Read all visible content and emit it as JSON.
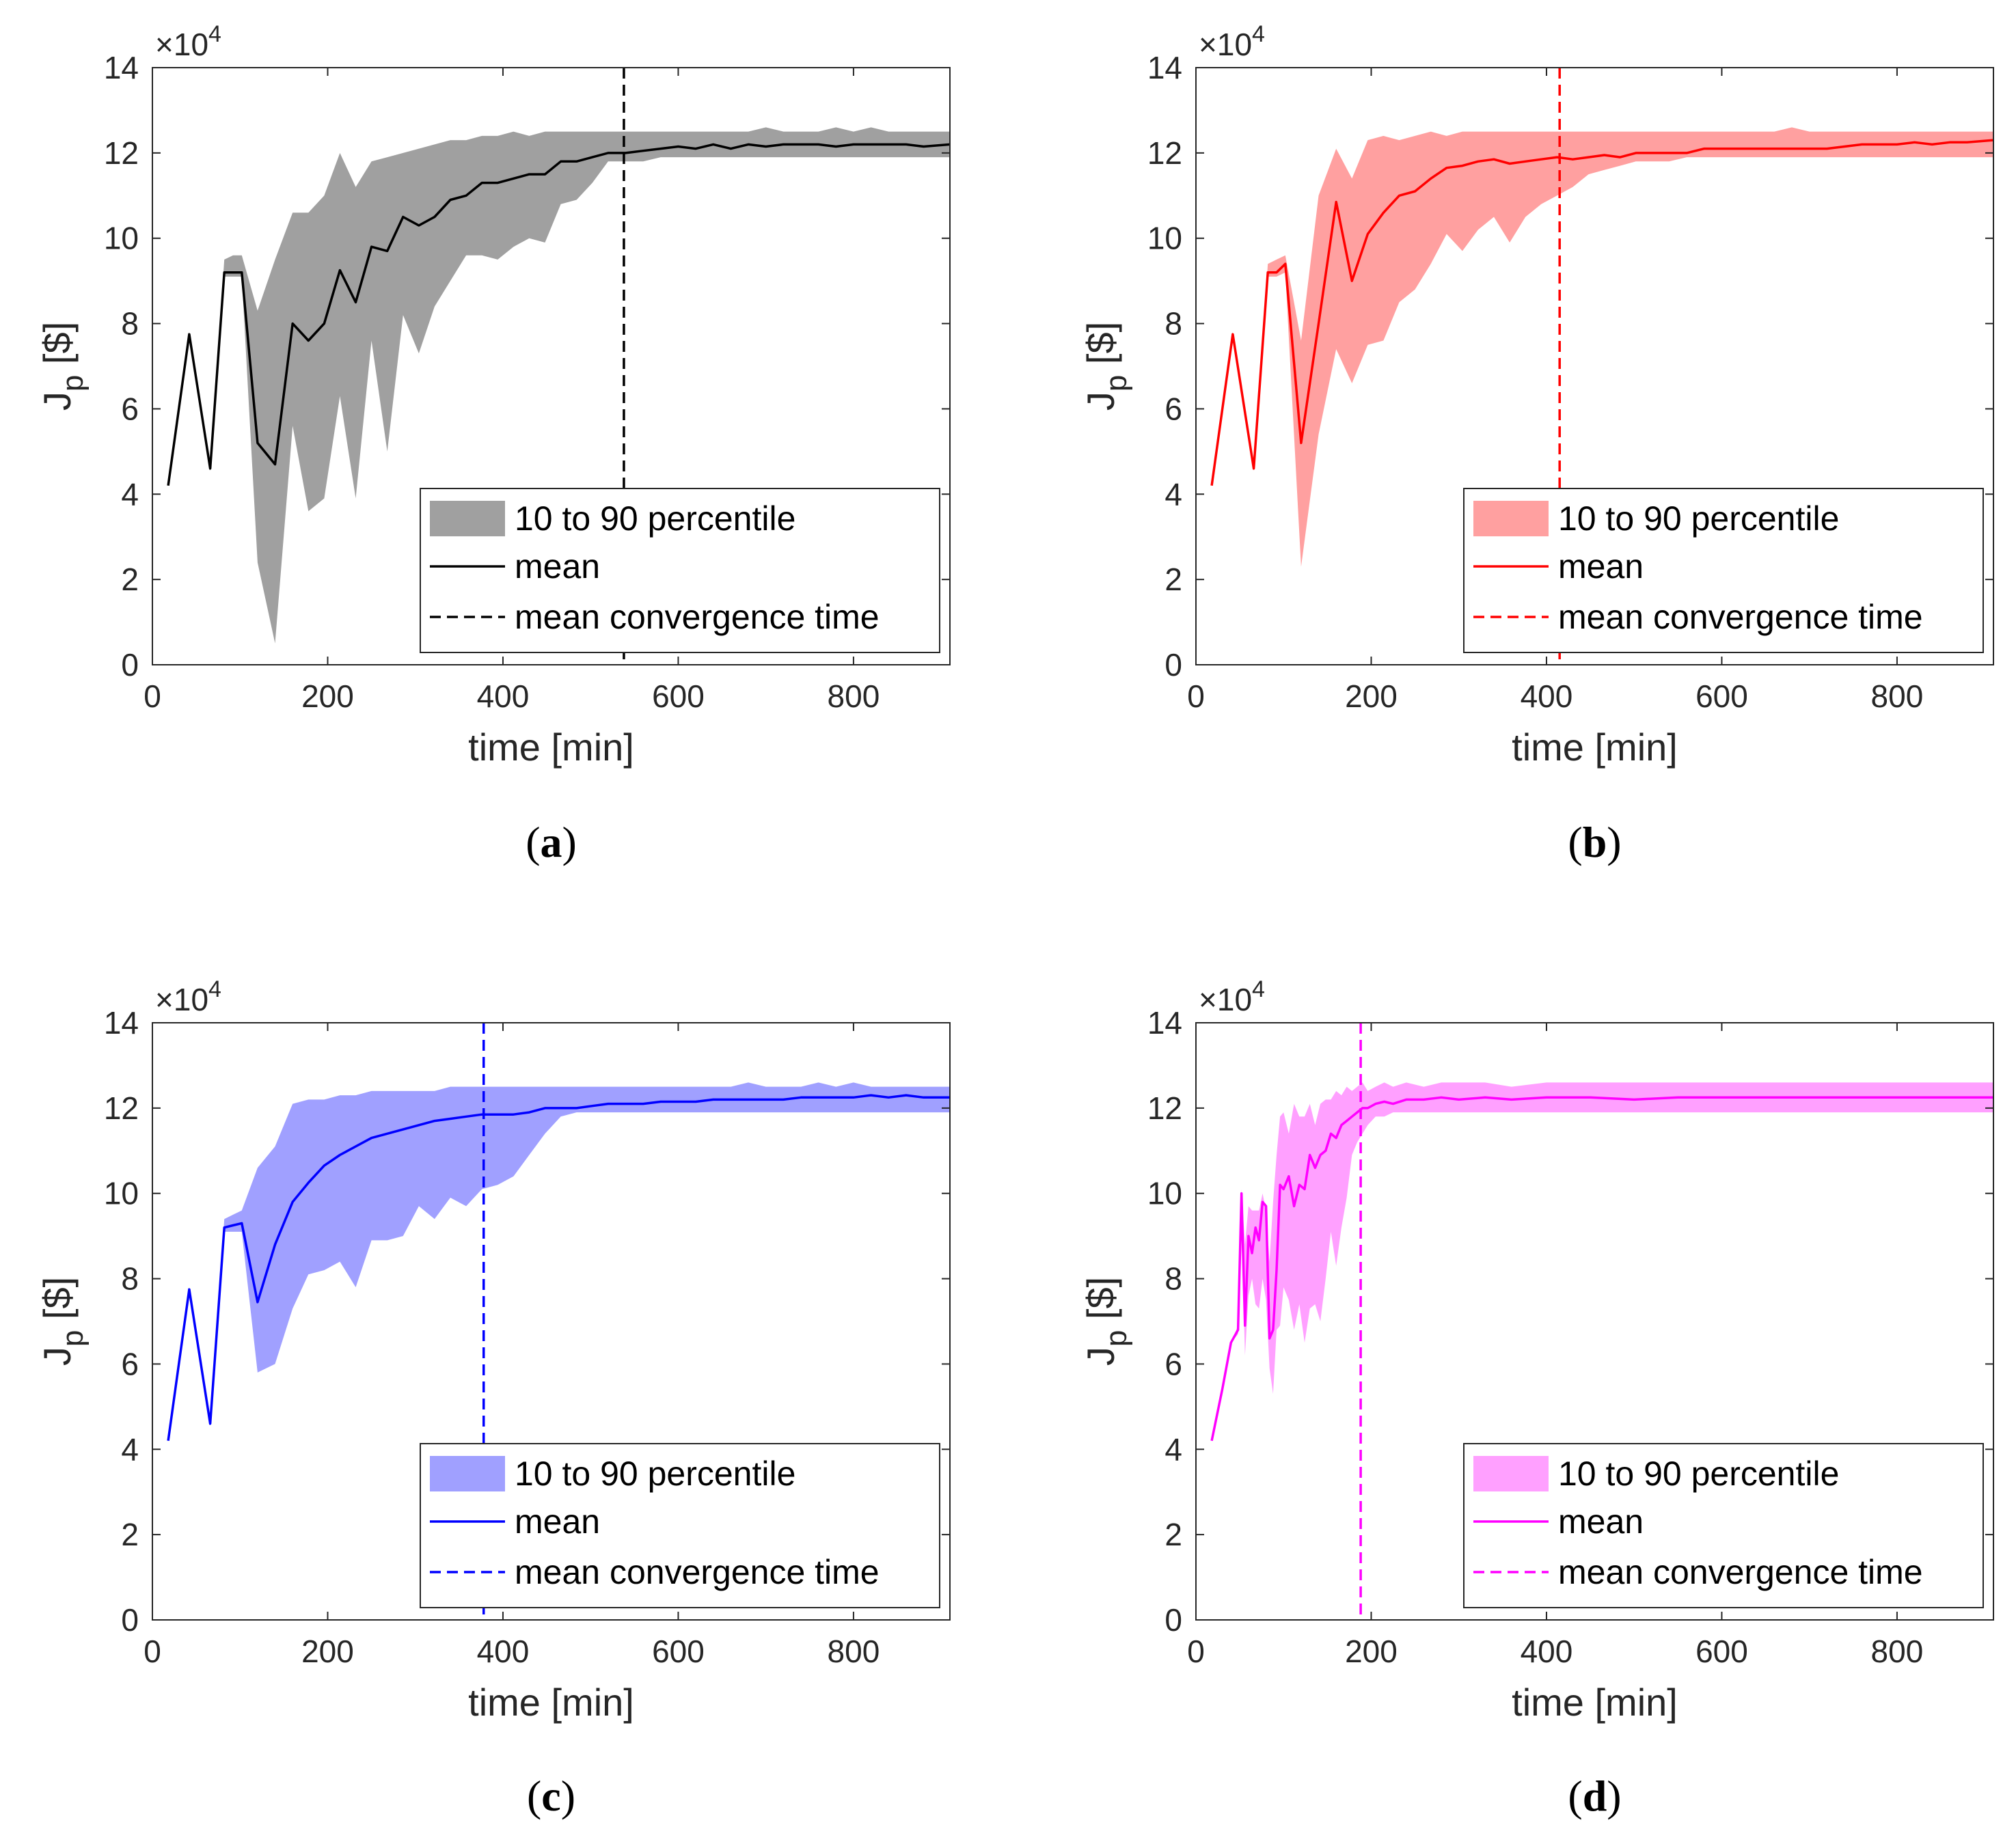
{
  "colors": {
    "axis": "#262626",
    "a": {
      "line": "#000000",
      "band": "#a0a0a0"
    },
    "b": {
      "line": "#ff0000",
      "band": "#ffa0a0"
    },
    "c": {
      "line": "#0000ff",
      "band": "#a0a0ff"
    },
    "d": {
      "line": "#ff00ff",
      "band": "#ffa0ff"
    }
  },
  "chart_data": [
    {
      "id": "a",
      "caption": {
        "open": "(",
        "letter": "a",
        "close": ")"
      },
      "type": "line",
      "xlabel": "time [min]",
      "ylabel": "J",
      "ylabel_sub": "p",
      "ylabel_unit": " [$]",
      "exponent": {
        "base": "×10",
        "power": "4"
      },
      "xlim": [
        0,
        910
      ],
      "ylim": [
        0,
        14
      ],
      "xticks": [
        "0",
        "200",
        "400",
        "600",
        "800"
      ],
      "yticks": [
        "0",
        "2",
        "4",
        "6",
        "8",
        "10",
        "12",
        "14"
      ],
      "legend": {
        "band": "10 to 90 percentile",
        "mean": "mean",
        "convergence": "mean convergence time"
      },
      "convergence_time": 538,
      "mean": {
        "x": [
          18,
          42,
          66,
          82,
          92,
          102,
          120,
          140,
          160,
          178,
          196,
          214,
          232,
          250,
          268,
          286,
          304,
          322,
          340,
          358,
          376,
          394,
          412,
          430,
          448,
          466,
          484,
          502,
          520,
          540,
          560,
          580,
          600,
          620,
          640,
          660,
          680,
          700,
          720,
          740,
          760,
          780,
          800,
          820,
          840,
          860,
          880,
          910
        ],
        "y": [
          4.2,
          7.75,
          4.6,
          9.2,
          9.2,
          9.2,
          5.2,
          4.7,
          8.0,
          7.6,
          8.0,
          9.25,
          8.5,
          9.8,
          9.7,
          10.5,
          10.3,
          10.5,
          10.9,
          11.0,
          11.3,
          11.3,
          11.4,
          11.5,
          11.5,
          11.8,
          11.8,
          11.9,
          12.0,
          12.0,
          12.05,
          12.1,
          12.15,
          12.1,
          12.2,
          12.1,
          12.2,
          12.15,
          12.2,
          12.2,
          12.2,
          12.15,
          12.2,
          12.2,
          12.2,
          12.2,
          12.15,
          12.2
        ]
      },
      "band": {
        "x": [
          18,
          42,
          66,
          82,
          92,
          102,
          120,
          140,
          160,
          178,
          196,
          214,
          232,
          250,
          268,
          286,
          304,
          322,
          340,
          358,
          376,
          394,
          412,
          430,
          448,
          466,
          484,
          502,
          520,
          540,
          560,
          580,
          600,
          620,
          640,
          660,
          680,
          700,
          720,
          740,
          760,
          780,
          800,
          820,
          840,
          860,
          880,
          910
        ],
        "upper": [
          4.2,
          7.75,
          4.6,
          9.5,
          9.6,
          9.6,
          8.3,
          9.5,
          10.6,
          10.6,
          11.0,
          12.0,
          11.2,
          11.8,
          11.9,
          12.0,
          12.1,
          12.2,
          12.3,
          12.3,
          12.4,
          12.4,
          12.5,
          12.4,
          12.5,
          12.5,
          12.5,
          12.5,
          12.5,
          12.5,
          12.5,
          12.5,
          12.5,
          12.5,
          12.5,
          12.5,
          12.5,
          12.6,
          12.5,
          12.5,
          12.5,
          12.6,
          12.5,
          12.6,
          12.5,
          12.5,
          12.5,
          12.5
        ],
        "lower": [
          4.2,
          7.75,
          4.6,
          9.1,
          9.1,
          9.1,
          2.4,
          0.5,
          5.6,
          3.6,
          3.9,
          6.3,
          3.9,
          7.6,
          5.0,
          8.2,
          7.3,
          8.4,
          9.0,
          9.6,
          9.6,
          9.5,
          9.8,
          10.0,
          9.9,
          10.8,
          10.9,
          11.3,
          11.8,
          11.8,
          11.8,
          11.9,
          11.9,
          11.9,
          11.9,
          11.9,
          11.9,
          11.9,
          11.9,
          11.9,
          11.9,
          11.9,
          11.9,
          11.9,
          11.9,
          11.9,
          11.9,
          11.9
        ]
      }
    },
    {
      "id": "b",
      "caption": {
        "open": "(",
        "letter": "b",
        "close": ")"
      },
      "type": "line",
      "xlabel": "time [min]",
      "ylabel": "J",
      "ylabel_sub": "p",
      "ylabel_unit": " [$]",
      "exponent": {
        "base": "×10",
        "power": "4"
      },
      "xlim": [
        0,
        910
      ],
      "ylim": [
        0,
        14
      ],
      "xticks": [
        "0",
        "200",
        "400",
        "600",
        "800"
      ],
      "yticks": [
        "0",
        "2",
        "4",
        "6",
        "8",
        "10",
        "12",
        "14"
      ],
      "legend": {
        "band": "10 to 90 percentile",
        "mean": "mean",
        "convergence": "mean convergence time"
      },
      "convergence_time": 415,
      "mean": {
        "x": [
          18,
          42,
          66,
          82,
          92,
          102,
          120,
          140,
          160,
          178,
          196,
          214,
          232,
          250,
          268,
          286,
          304,
          322,
          340,
          358,
          376,
          394,
          412,
          430,
          448,
          466,
          484,
          502,
          520,
          540,
          560,
          580,
          600,
          620,
          640,
          660,
          680,
          700,
          720,
          740,
          760,
          780,
          800,
          820,
          840,
          860,
          880,
          910
        ],
        "y": [
          4.2,
          7.75,
          4.6,
          9.2,
          9.2,
          9.4,
          5.2,
          8.0,
          10.85,
          9.0,
          10.1,
          10.6,
          11.0,
          11.1,
          11.4,
          11.65,
          11.7,
          11.8,
          11.85,
          11.75,
          11.8,
          11.85,
          11.9,
          11.85,
          11.9,
          11.95,
          11.9,
          12.0,
          12.0,
          12.0,
          12.0,
          12.1,
          12.1,
          12.1,
          12.1,
          12.1,
          12.1,
          12.1,
          12.1,
          12.15,
          12.2,
          12.2,
          12.2,
          12.25,
          12.2,
          12.25,
          12.25,
          12.3
        ]
      },
      "band": {
        "x": [
          18,
          42,
          66,
          82,
          92,
          102,
          120,
          140,
          160,
          178,
          196,
          214,
          232,
          250,
          268,
          286,
          304,
          322,
          340,
          358,
          376,
          394,
          412,
          430,
          448,
          466,
          484,
          502,
          520,
          540,
          560,
          580,
          600,
          620,
          640,
          660,
          680,
          700,
          720,
          740,
          760,
          780,
          800,
          820,
          840,
          860,
          880,
          910
        ],
        "upper": [
          4.2,
          7.75,
          4.6,
          9.4,
          9.5,
          9.6,
          7.6,
          11.0,
          12.1,
          11.4,
          12.3,
          12.4,
          12.3,
          12.4,
          12.5,
          12.4,
          12.5,
          12.5,
          12.5,
          12.5,
          12.5,
          12.5,
          12.5,
          12.5,
          12.5,
          12.5,
          12.5,
          12.5,
          12.5,
          12.5,
          12.5,
          12.5,
          12.5,
          12.5,
          12.5,
          12.5,
          12.6,
          12.5,
          12.5,
          12.5,
          12.5,
          12.5,
          12.5,
          12.5,
          12.5,
          12.5,
          12.5,
          12.5
        ],
        "lower": [
          4.2,
          7.75,
          4.6,
          9.1,
          9.1,
          9.2,
          2.3,
          5.4,
          7.4,
          6.6,
          7.5,
          7.6,
          8.5,
          8.8,
          9.4,
          10.1,
          9.7,
          10.2,
          10.5,
          9.9,
          10.5,
          10.8,
          11.0,
          11.2,
          11.5,
          11.6,
          11.7,
          11.8,
          11.8,
          11.8,
          11.9,
          11.9,
          11.9,
          11.9,
          11.9,
          11.9,
          11.9,
          11.9,
          11.9,
          11.9,
          11.9,
          11.9,
          11.9,
          11.9,
          11.9,
          11.9,
          11.9,
          11.9
        ]
      }
    },
    {
      "id": "c",
      "caption": {
        "open": "(",
        "letter": "c",
        "close": ")"
      },
      "type": "line",
      "xlabel": "time [min]",
      "ylabel": "J",
      "ylabel_sub": "p",
      "ylabel_unit": " [$]",
      "exponent": {
        "base": "×10",
        "power": "4"
      },
      "xlim": [
        0,
        910
      ],
      "ylim": [
        0,
        14
      ],
      "xticks": [
        "0",
        "200",
        "400",
        "600",
        "800"
      ],
      "yticks": [
        "0",
        "2",
        "4",
        "6",
        "8",
        "10",
        "12",
        "14"
      ],
      "legend": {
        "band": "10 to 90 percentile",
        "mean": "mean",
        "convergence": "mean convergence time"
      },
      "convergence_time": 378,
      "mean": {
        "x": [
          18,
          42,
          66,
          82,
          92,
          102,
          120,
          140,
          160,
          178,
          196,
          214,
          232,
          250,
          268,
          286,
          304,
          322,
          340,
          358,
          376,
          394,
          412,
          430,
          448,
          466,
          484,
          502,
          520,
          540,
          560,
          580,
          600,
          620,
          640,
          660,
          680,
          700,
          720,
          740,
          760,
          780,
          800,
          820,
          840,
          860,
          880,
          910
        ],
        "y": [
          4.2,
          7.75,
          4.6,
          9.2,
          9.25,
          9.3,
          7.45,
          8.8,
          9.8,
          10.25,
          10.65,
          10.9,
          11.1,
          11.3,
          11.4,
          11.5,
          11.6,
          11.7,
          11.75,
          11.8,
          11.85,
          11.85,
          11.85,
          11.9,
          12.0,
          12.0,
          12.0,
          12.05,
          12.1,
          12.1,
          12.1,
          12.15,
          12.15,
          12.15,
          12.2,
          12.2,
          12.2,
          12.2,
          12.2,
          12.25,
          12.25,
          12.25,
          12.25,
          12.3,
          12.25,
          12.3,
          12.25,
          12.25
        ]
      },
      "band": {
        "x": [
          18,
          42,
          66,
          82,
          92,
          102,
          120,
          140,
          160,
          178,
          196,
          214,
          232,
          250,
          268,
          286,
          304,
          322,
          340,
          358,
          376,
          394,
          412,
          430,
          448,
          466,
          484,
          502,
          520,
          540,
          560,
          580,
          600,
          620,
          640,
          660,
          680,
          700,
          720,
          740,
          760,
          780,
          800,
          820,
          840,
          860,
          880,
          910
        ],
        "upper": [
          4.2,
          7.75,
          4.6,
          9.4,
          9.5,
          9.6,
          10.6,
          11.1,
          12.1,
          12.2,
          12.2,
          12.3,
          12.3,
          12.4,
          12.4,
          12.4,
          12.4,
          12.4,
          12.5,
          12.5,
          12.5,
          12.5,
          12.5,
          12.5,
          12.5,
          12.5,
          12.5,
          12.5,
          12.5,
          12.5,
          12.5,
          12.5,
          12.5,
          12.5,
          12.5,
          12.5,
          12.6,
          12.5,
          12.5,
          12.5,
          12.6,
          12.5,
          12.6,
          12.5,
          12.5,
          12.5,
          12.5,
          12.5
        ],
        "lower": [
          4.2,
          7.75,
          4.6,
          9.1,
          9.1,
          9.1,
          5.8,
          6.0,
          7.3,
          8.1,
          8.2,
          8.4,
          7.8,
          8.9,
          8.9,
          9.0,
          9.7,
          9.4,
          9.9,
          9.7,
          10.1,
          10.2,
          10.4,
          10.9,
          11.4,
          11.8,
          11.9,
          11.9,
          11.9,
          11.9,
          11.9,
          11.9,
          11.9,
          11.9,
          11.9,
          11.9,
          11.9,
          11.9,
          11.9,
          11.9,
          11.9,
          11.9,
          11.9,
          11.9,
          11.9,
          11.9,
          11.9,
          11.9
        ]
      }
    },
    {
      "id": "d",
      "caption": {
        "open": "(",
        "letter": "d",
        "close": ")"
      },
      "type": "line",
      "xlabel": "time [min]",
      "ylabel": "J",
      "ylabel_sub": "p",
      "ylabel_unit": " [$]",
      "exponent": {
        "base": "×10",
        "power": "4"
      },
      "xlim": [
        0,
        910
      ],
      "ylim": [
        0,
        14
      ],
      "xticks": [
        "0",
        "200",
        "400",
        "600",
        "800"
      ],
      "yticks": [
        "0",
        "2",
        "4",
        "6",
        "8",
        "10",
        "12",
        "14"
      ],
      "legend": {
        "band": "10 to 90 percentile",
        "mean": "mean",
        "convergence": "mean convergence time"
      },
      "convergence_time": 188,
      "mean": {
        "x": [
          18,
          30,
          40,
          48,
          52,
          56,
          60,
          64,
          68,
          72,
          76,
          80,
          84,
          88,
          92,
          96,
          100,
          106,
          112,
          118,
          124,
          130,
          136,
          142,
          148,
          154,
          160,
          166,
          172,
          178,
          184,
          190,
          196,
          205,
          215,
          225,
          240,
          260,
          280,
          300,
          330,
          360,
          400,
          450,
          500,
          550,
          600,
          650,
          700,
          750,
          800,
          850,
          910
        ],
        "y": [
          4.2,
          5.4,
          6.5,
          6.8,
          10.0,
          6.9,
          9.0,
          8.6,
          9.2,
          8.9,
          9.8,
          9.7,
          6.6,
          6.8,
          8.2,
          10.2,
          10.1,
          10.4,
          9.7,
          10.2,
          10.1,
          10.9,
          10.6,
          10.9,
          11.0,
          11.4,
          11.3,
          11.6,
          11.7,
          11.8,
          11.9,
          12.0,
          12.0,
          12.1,
          12.15,
          12.1,
          12.2,
          12.2,
          12.25,
          12.2,
          12.25,
          12.2,
          12.25,
          12.25,
          12.2,
          12.25,
          12.25,
          12.25,
          12.25,
          12.25,
          12.25,
          12.25,
          12.25
        ]
      },
      "band": {
        "x": [
          18,
          30,
          40,
          48,
          52,
          56,
          60,
          64,
          68,
          72,
          76,
          80,
          84,
          88,
          92,
          96,
          100,
          106,
          112,
          118,
          124,
          130,
          136,
          142,
          148,
          154,
          160,
          166,
          172,
          178,
          184,
          190,
          196,
          205,
          215,
          225,
          240,
          260,
          280,
          300,
          330,
          360,
          400,
          450,
          500,
          550,
          600,
          650,
          700,
          750,
          800,
          850,
          910
        ],
        "upper": [
          4.2,
          5.4,
          6.5,
          6.9,
          10.1,
          8.8,
          9.7,
          9.6,
          9.6,
          9.6,
          10.0,
          9.6,
          8.4,
          9.8,
          10.9,
          11.8,
          11.9,
          11.4,
          12.1,
          11.8,
          11.8,
          12.1,
          11.6,
          12.1,
          12.2,
          12.2,
          12.4,
          12.3,
          12.5,
          12.4,
          12.5,
          12.6,
          12.4,
          12.5,
          12.6,
          12.5,
          12.6,
          12.5,
          12.6,
          12.6,
          12.6,
          12.5,
          12.6,
          12.6,
          12.6,
          12.6,
          12.6,
          12.6,
          12.6,
          12.6,
          12.6,
          12.6,
          12.6
        ],
        "lower": [
          4.2,
          5.4,
          6.5,
          6.7,
          9.0,
          6.2,
          7.6,
          8.0,
          7.4,
          7.3,
          8.0,
          7.5,
          5.9,
          5.3,
          6.8,
          6.9,
          7.8,
          7.5,
          6.8,
          7.4,
          6.5,
          7.3,
          7.4,
          7.0,
          8.0,
          9.1,
          8.3,
          9.2,
          9.9,
          10.9,
          11.2,
          11.4,
          11.6,
          11.8,
          11.8,
          11.9,
          11.9,
          11.9,
          11.9,
          11.9,
          11.9,
          11.9,
          11.9,
          11.9,
          11.9,
          11.9,
          11.9,
          11.9,
          11.9,
          11.9,
          11.9,
          11.9,
          11.9
        ]
      }
    }
  ]
}
